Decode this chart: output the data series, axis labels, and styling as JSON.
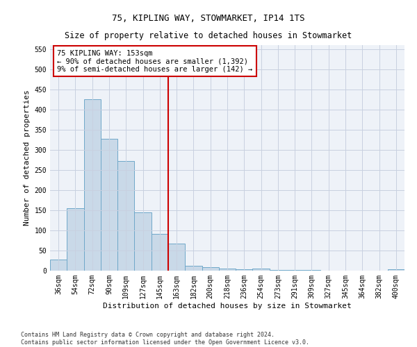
{
  "title": "75, KIPLING WAY, STOWMARKET, IP14 1TS",
  "subtitle": "Size of property relative to detached houses in Stowmarket",
  "xlabel": "Distribution of detached houses by size in Stowmarket",
  "ylabel": "Number of detached properties",
  "categories": [
    "36sqm",
    "54sqm",
    "72sqm",
    "90sqm",
    "109sqm",
    "127sqm",
    "145sqm",
    "163sqm",
    "182sqm",
    "200sqm",
    "218sqm",
    "236sqm",
    "254sqm",
    "273sqm",
    "291sqm",
    "309sqm",
    "327sqm",
    "345sqm",
    "364sqm",
    "382sqm",
    "400sqm"
  ],
  "values": [
    27,
    155,
    425,
    327,
    272,
    145,
    91,
    68,
    12,
    9,
    5,
    3,
    5,
    1,
    1,
    1,
    0,
    0,
    0,
    0,
    3
  ],
  "bar_color": "#c9d9e8",
  "bar_edge_color": "#6fa8c9",
  "annotation_text": "75 KIPLING WAY: 153sqm\n← 90% of detached houses are smaller (1,392)\n9% of semi-detached houses are larger (142) →",
  "annotation_box_color": "#ffffff",
  "annotation_box_edge_color": "#cc0000",
  "vline_color": "#cc0000",
  "vline_x": 6.5,
  "ylim": [
    0,
    560
  ],
  "yticks": [
    0,
    50,
    100,
    150,
    200,
    250,
    300,
    350,
    400,
    450,
    500,
    550
  ],
  "grid_color": "#c8d0e0",
  "background_color": "#eef2f8",
  "footer_line1": "Contains HM Land Registry data © Crown copyright and database right 2024.",
  "footer_line2": "Contains public sector information licensed under the Open Government Licence v3.0.",
  "title_fontsize": 9,
  "axis_label_fontsize": 8,
  "tick_fontsize": 7,
  "annotation_fontsize": 7.5
}
